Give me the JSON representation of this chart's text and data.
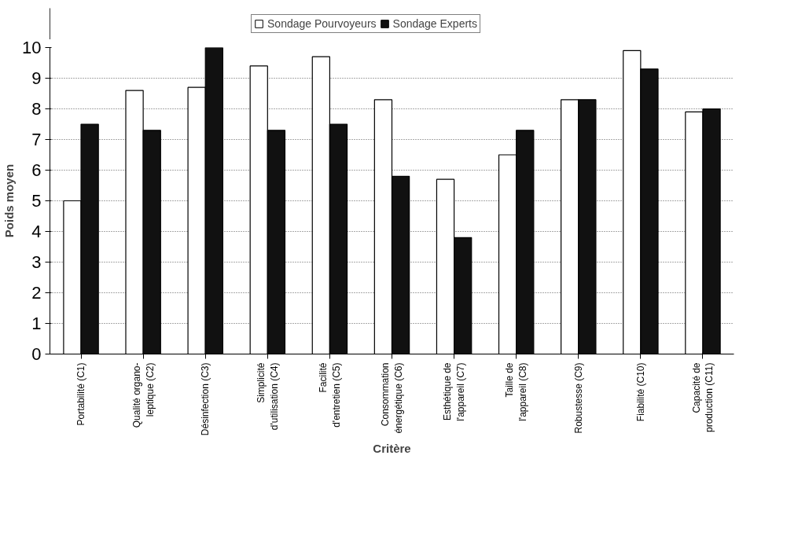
{
  "chart_data": {
    "type": "bar",
    "xlabel": "Critère",
    "ylabel": "Poids moyen",
    "categories": [
      "Portabilité (C1)",
      "Qualité organo-\nleptique (C2)",
      "Désinfection (C3)",
      "Simplicité\nd'utilisation (C4)",
      "Facilité\nd'entretien (C5)",
      "Consommation\nénergétique (C6)",
      "Esthétique de\nl'appareil (C7)",
      "Taille de\nl'appareil (C8)",
      "Robustesse (C9)",
      "Fiabilité (C10)",
      "Capacité de\nproduction (C11)"
    ],
    "series": [
      {
        "name": "Sondage Pourvoyeurs",
        "color": "#ffffff",
        "values": [
          5.0,
          8.6,
          8.7,
          9.4,
          9.7,
          8.3,
          5.7,
          6.5,
          8.3,
          9.9,
          7.9
        ]
      },
      {
        "name": "Sondage Experts",
        "color": "#111111",
        "values": [
          7.5,
          7.3,
          10,
          7.3,
          7.5,
          5.8,
          3.8,
          7.3,
          8.3,
          9.3,
          8.0
        ]
      }
    ],
    "ylim": [
      0,
      10
    ],
    "yticks": [
      0,
      1,
      2,
      3,
      4,
      5,
      6,
      7,
      8,
      9,
      10
    ],
    "grid": "y",
    "legend": "top"
  }
}
